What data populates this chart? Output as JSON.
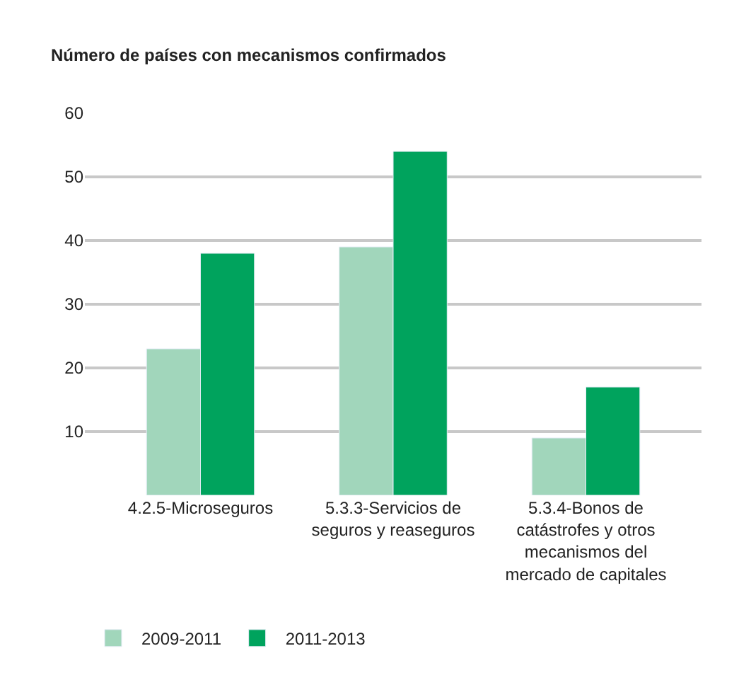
{
  "chart_data": {
    "type": "bar",
    "ylabel": "Número de países con mecanismos confirmados",
    "categories": [
      "4.2.5-Microseguros",
      "5.3.3-Servicios de seguros y reaseguros",
      "5.3.4-Bonos de catástrofes y otros mecanismos del mercado de capitales"
    ],
    "series": [
      {
        "name": "2009-2011",
        "color": "#a1d6bb",
        "values": [
          23,
          39,
          9
        ]
      },
      {
        "name": "2011-2013",
        "color": "#00a35d",
        "values": [
          38,
          54,
          17
        ]
      }
    ],
    "ylim": [
      0,
      60
    ],
    "yticks": [
      10,
      20,
      30,
      40,
      50,
      60
    ],
    "grid": "y",
    "legend": "bottom left"
  }
}
